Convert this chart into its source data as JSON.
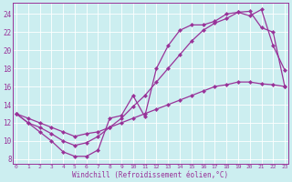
{
  "xlabel": "Windchill (Refroidissement éolien,°C)",
  "bg_color": "#cceef0",
  "line_color": "#993399",
  "grid_color": "#ffffff",
  "x_ticks": [
    0,
    1,
    2,
    3,
    4,
    5,
    6,
    7,
    8,
    9,
    10,
    11,
    12,
    13,
    14,
    15,
    16,
    17,
    18,
    19,
    20,
    21,
    22,
    23
  ],
  "y_ticks": [
    8,
    10,
    12,
    14,
    16,
    18,
    20,
    22,
    24
  ],
  "xlim": [
    -0.3,
    23.3
  ],
  "ylim": [
    7.5,
    25.2
  ],
  "line1_x": [
    0,
    1,
    2,
    3,
    4,
    5,
    6,
    7,
    8,
    9,
    10,
    11,
    12,
    13,
    14,
    15,
    16,
    17,
    18,
    19,
    20,
    21,
    22,
    23
  ],
  "line1_y": [
    13.0,
    12.0,
    11.0,
    10.0,
    8.8,
    8.3,
    8.3,
    9.0,
    12.5,
    12.8,
    15.0,
    12.7,
    18.0,
    20.5,
    22.2,
    22.8,
    22.8,
    23.2,
    24.0,
    24.2,
    23.8,
    24.5,
    20.5,
    17.8
  ],
  "line2_x": [
    0,
    1,
    2,
    3,
    4,
    5,
    6,
    7,
    8,
    9,
    10,
    11,
    12,
    13,
    14,
    15,
    16,
    17,
    18,
    19,
    20,
    21,
    22,
    23
  ],
  "line2_y": [
    13.0,
    12.0,
    11.5,
    10.8,
    10.0,
    9.5,
    9.8,
    10.5,
    11.5,
    12.5,
    13.8,
    15.0,
    16.5,
    18.0,
    19.5,
    21.0,
    22.2,
    23.0,
    23.5,
    24.2,
    24.3,
    22.5,
    22.0,
    16.0
  ],
  "line3_x": [
    0,
    1,
    2,
    3,
    4,
    5,
    6,
    7,
    8,
    9,
    10,
    11,
    12,
    13,
    14,
    15,
    16,
    17,
    18,
    19,
    20,
    21,
    22,
    23
  ],
  "line3_y": [
    13.0,
    12.5,
    12.0,
    11.5,
    11.0,
    10.5,
    10.8,
    11.0,
    11.5,
    12.0,
    12.5,
    13.0,
    13.5,
    14.0,
    14.5,
    15.0,
    15.5,
    16.0,
    16.2,
    16.5,
    16.5,
    16.3,
    16.2,
    16.0
  ]
}
